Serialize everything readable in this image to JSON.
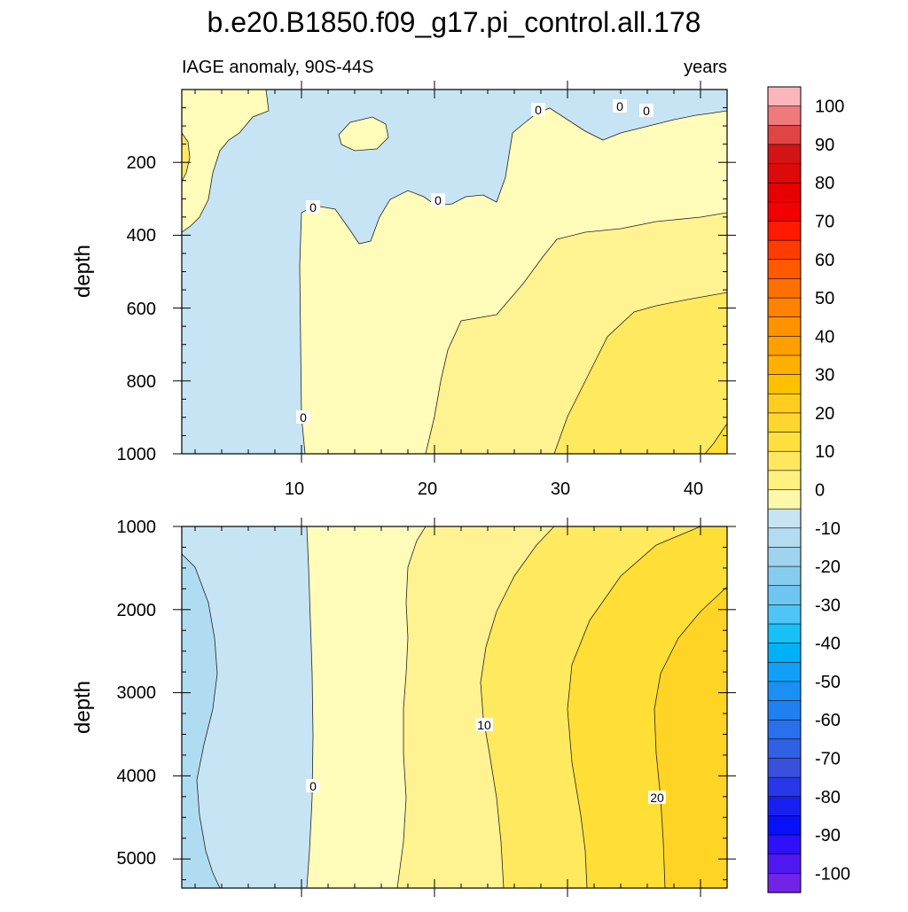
{
  "title": "b.e20.B1850.f09_g17.pi_control.all.178",
  "subtitle_left": "IAGE anomaly, 90S-44S",
  "subtitle_right": "years",
  "chart_data": [
    {
      "type": "heatmap",
      "ylabel": "depth",
      "ylim": [
        1000,
        0
      ],
      "xlim": [
        1,
        42.5
      ],
      "y_ticks": [
        "200",
        "400",
        "600",
        "800",
        "1000"
      ],
      "x_ticks": [
        "10",
        "20",
        "30",
        "40"
      ],
      "contour_labels": [
        "0",
        "0",
        "0",
        "0",
        "0",
        "0"
      ],
      "note_fill": "contour bands of IAGE anomaly (years); 0 contour near x=10-11 at depth, increasing to ~20 near x=42 at 1000 m"
    },
    {
      "type": "heatmap",
      "ylabel": "depth",
      "ylim": [
        1000,
        5350
      ],
      "xlim": [
        1,
        42.5
      ],
      "y_ticks": [
        "1000",
        "2000",
        "3000",
        "4000",
        "5000"
      ],
      "contour_labels": [
        "0",
        "10",
        "20"
      ]
    }
  ],
  "colorbar": {
    "labels": [
      "100",
      "90",
      "80",
      "70",
      "60",
      "50",
      "40",
      "30",
      "20",
      "10",
      "0",
      "-10",
      "-20",
      "-30",
      "-40",
      "-50",
      "-60",
      "-70",
      "-80",
      "-90",
      "-100"
    ],
    "colors": [
      "#fbb6bb",
      "#ef7a7c",
      "#e04444",
      "#d21414",
      "#dc0a0a",
      "#e80000",
      "#f40000",
      "#ff1a00",
      "#ff3c00",
      "#ff5a00",
      "#ff7000",
      "#ff8200",
      "#ff9200",
      "#ffa000",
      "#ffb000",
      "#ffc000",
      "#ffcc20",
      "#ffd630",
      "#ffe040",
      "#ffe860",
      "#fff080",
      "#fff8aa",
      "#c6e4f4",
      "#b4dcf0",
      "#9ed4ee",
      "#86ccee",
      "#6ec6f0",
      "#4ec4f8",
      "#18c0f8",
      "#00b0f8",
      "#10a0f8",
      "#1a90f4",
      "#2080f0",
      "#2870ec",
      "#3060e4",
      "#3850dc",
      "#2838e8",
      "#1820f0",
      "#0810f8",
      "#3010f8",
      "#5018f0",
      "#7024e8"
    ]
  }
}
